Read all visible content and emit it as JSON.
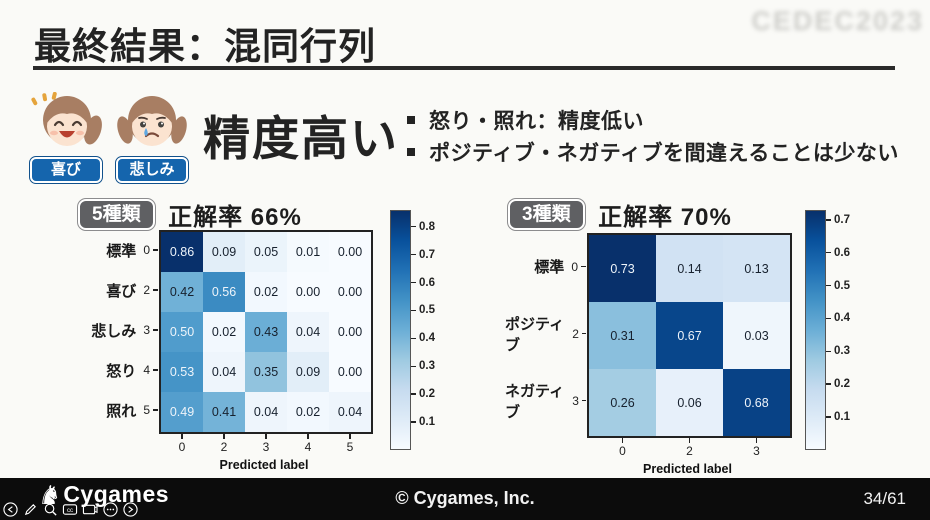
{
  "slide": {
    "title": "最終結果：混同行列",
    "watermark": "CEDEC2023",
    "headline": "精度高い",
    "bullets": [
      "怒り・照れ：精度低い",
      "ポジティブ・ネガティブを間違えることは少ない"
    ],
    "characters": [
      {
        "name": "joy-girl",
        "label": "喜び"
      },
      {
        "name": "sad-girl",
        "label": "悲しみ"
      }
    ]
  },
  "chart_data": [
    {
      "type": "heatmap",
      "badge": "5種類",
      "title": "正解率 66%",
      "row_labels": [
        "標準",
        "喜び",
        "悲しみ",
        "怒り",
        "照れ"
      ],
      "row_ids": [
        "0",
        "2",
        "3",
        "4",
        "5"
      ],
      "col_labels": [
        "0",
        "2",
        "3",
        "4",
        "5"
      ],
      "xlabel": "Predicted label",
      "values": [
        [
          0.86,
          0.09,
          0.05,
          0.01,
          0.0
        ],
        [
          0.42,
          0.56,
          0.02,
          0.0,
          0.0
        ],
        [
          0.5,
          0.02,
          0.43,
          0.04,
          0.0
        ],
        [
          0.53,
          0.04,
          0.35,
          0.09,
          0.0
        ],
        [
          0.49,
          0.41,
          0.04,
          0.02,
          0.04
        ]
      ],
      "vmax": 0.86,
      "colormap": "Blues",
      "colorbar_ticks": [
        0.8,
        0.7,
        0.6,
        0.5,
        0.4,
        0.3,
        0.2,
        0.1
      ]
    },
    {
      "type": "heatmap",
      "badge": "3種類",
      "title": "正解率 70%",
      "row_labels": [
        "標準",
        "ポジティブ",
        "ネガティブ"
      ],
      "row_ids": [
        "0",
        "2",
        "3"
      ],
      "col_labels": [
        "0",
        "2",
        "3"
      ],
      "xlabel": "Predicted label",
      "values": [
        [
          0.73,
          0.14,
          0.13
        ],
        [
          0.31,
          0.67,
          0.03
        ],
        [
          0.26,
          0.06,
          0.68
        ]
      ],
      "vmax": 0.73,
      "colormap": "Blues",
      "colorbar_ticks": [
        0.7,
        0.6,
        0.5,
        0.4,
        0.3,
        0.2,
        0.1
      ]
    }
  ],
  "footer": {
    "logo": "Cygames",
    "copyright": "© Cygames, Inc.",
    "page": "34/61"
  },
  "toolbar_icons": [
    "back-arrow",
    "pencil",
    "magnifier",
    "closed-captions",
    "display",
    "more",
    "forward-arrow"
  ],
  "colors": {
    "accent_blue": "#1565ad",
    "badge_gray": "#5f6063",
    "heatmap_dark": "#08306b",
    "heatmap_light": "#f7fbff",
    "footer_bg": "#0c0c0c",
    "title_text": "#232323"
  }
}
